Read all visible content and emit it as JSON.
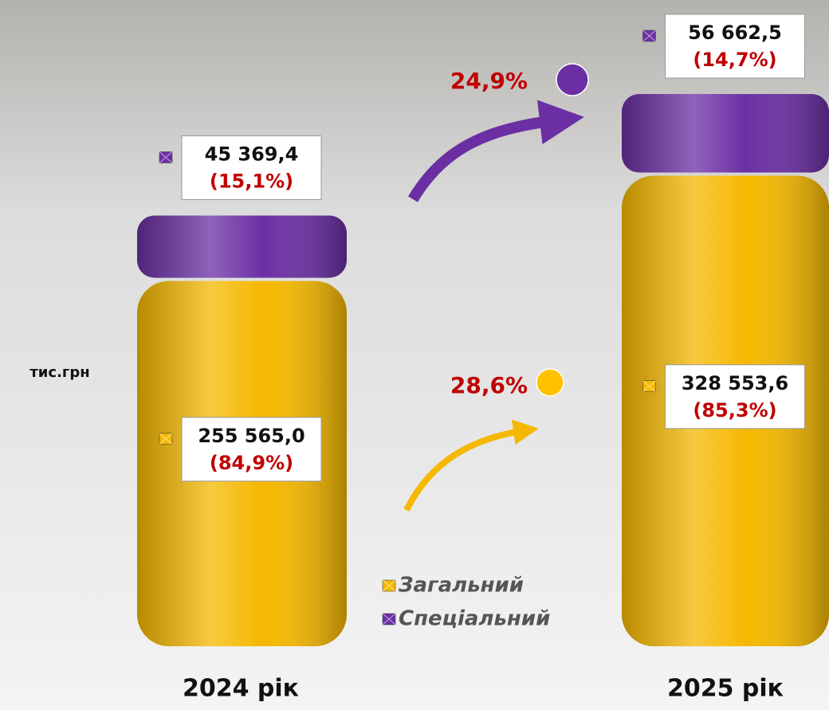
{
  "chart_data": {
    "type": "bar",
    "stacked": true,
    "y_label": "тис.грн",
    "categories": [
      "2024 рік",
      "2025 рік"
    ],
    "series": [
      {
        "name": "Загальний",
        "color": "#f5b800",
        "values": [
          255565.0,
          328553.6
        ],
        "value_labels": [
          "255 565,0",
          "328 553,6"
        ],
        "shares": [
          {
            "value": 84.9,
            "label": "(84,9%)"
          },
          {
            "value": 85.3,
            "label": "(85,3%)"
          }
        ],
        "growth": {
          "value": 28.6,
          "label": "28,6%"
        }
      },
      {
        "name": "Спеціальний",
        "color": "#6b2fa3",
        "values": [
          45369.4,
          56662.5
        ],
        "value_labels": [
          "45 369,4",
          "56 662,5"
        ],
        "shares": [
          {
            "value": 15.1,
            "label": "(15,1%)"
          },
          {
            "value": 14.7,
            "label": "(14,7%)"
          }
        ],
        "growth": {
          "value": 24.9,
          "label": "24,9%"
        }
      }
    ]
  }
}
